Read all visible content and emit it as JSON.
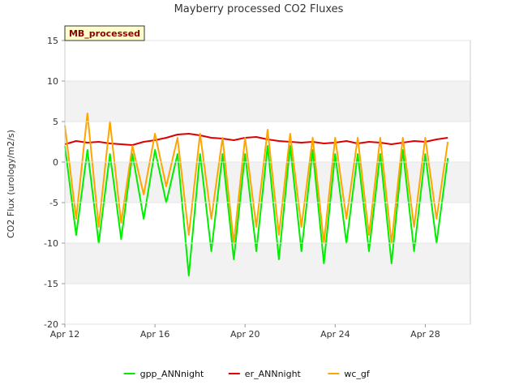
{
  "chart_data": {
    "type": "line",
    "title": "Mayberry processed CO2 Fluxes",
    "xlabel": "",
    "ylabel": "CO2 Flux (urology/m2/s)",
    "tag": "MB_processed",
    "x_range_days": [
      0,
      18.0
    ],
    "x_tick_days": [
      0,
      4,
      8,
      12,
      16
    ],
    "x_ticks": [
      "Apr 12",
      "Apr 16",
      "Apr 20",
      "Apr 24",
      "Apr 28"
    ],
    "ylim": [
      -20,
      15
    ],
    "y_ticks": [
      -20,
      -15,
      -10,
      -5,
      0,
      5,
      10,
      15
    ],
    "grid": "horizontal alternating bands",
    "legend_position": "bottom",
    "x_days": [
      0.0,
      0.5,
      1.0,
      1.5,
      2.0,
      2.5,
      3.0,
      3.5,
      4.0,
      4.5,
      5.0,
      5.5,
      6.0,
      6.5,
      7.0,
      7.5,
      8.0,
      8.5,
      9.0,
      9.5,
      10.0,
      10.5,
      11.0,
      11.5,
      12.0,
      12.5,
      13.0,
      13.5,
      14.0,
      14.5,
      15.0,
      15.5,
      16.0,
      16.5,
      17.0
    ],
    "series": [
      {
        "name": "gpp_ANNnight",
        "color": "#00ee00",
        "values": [
          2.0,
          -9.0,
          1.5,
          -10.0,
          1.0,
          -9.5,
          1.0,
          -7.0,
          1.5,
          -5.0,
          1.0,
          -14.0,
          1.0,
          -11.0,
          1.0,
          -12.0,
          1.0,
          -11.0,
          2.0,
          -12.0,
          2.0,
          -11.0,
          1.5,
          -12.5,
          1.0,
          -10.0,
          1.0,
          -11.0,
          1.0,
          -12.5,
          1.5,
          -11.0,
          1.0,
          -10.0,
          0.5
        ]
      },
      {
        "name": "er_ANNnight",
        "color": "#dd0000",
        "values": [
          2.2,
          2.6,
          2.4,
          2.5,
          2.3,
          2.2,
          2.1,
          2.5,
          2.7,
          3.0,
          3.4,
          3.5,
          3.3,
          3.0,
          2.9,
          2.7,
          3.0,
          3.1,
          2.8,
          2.6,
          2.5,
          2.4,
          2.5,
          2.3,
          2.4,
          2.6,
          2.3,
          2.5,
          2.4,
          2.2,
          2.4,
          2.6,
          2.5,
          2.8,
          3.0
        ]
      },
      {
        "name": "wc_gf",
        "color": "#ffa500",
        "values": [
          4.5,
          -7.0,
          6.0,
          -8.0,
          5.0,
          -7.5,
          2.0,
          -4.0,
          3.5,
          -3.0,
          3.0,
          -9.0,
          3.5,
          -7.0,
          3.0,
          -10.0,
          3.0,
          -8.0,
          4.0,
          -9.0,
          3.5,
          -8.0,
          3.0,
          -10.0,
          3.0,
          -7.0,
          3.0,
          -9.0,
          3.0,
          -10.0,
          3.0,
          -8.0,
          3.0,
          -7.0,
          2.5
        ]
      }
    ]
  }
}
